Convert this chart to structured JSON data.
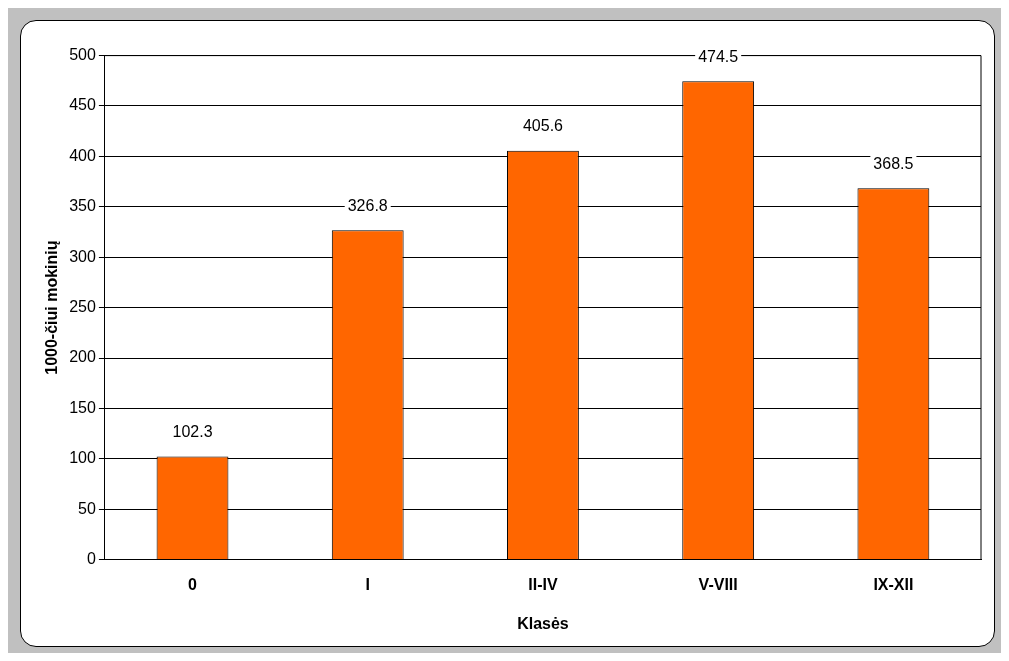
{
  "chart_data": {
    "type": "bar",
    "xlabel": "Klasės",
    "ylabel": "1000-čiui mokinių",
    "categories": [
      "0",
      "I",
      "II-IV",
      "V-VIII",
      "IX-XII"
    ],
    "values": [
      102.3,
      326.8,
      405.6,
      474.5,
      368.5
    ],
    "color": "#ff6600",
    "ylim": [
      0,
      500
    ],
    "yticks": [
      0,
      50,
      100,
      150,
      200,
      250,
      300,
      350,
      400,
      450,
      500
    ],
    "grid": "y",
    "data_labels": true,
    "legend": false
  }
}
